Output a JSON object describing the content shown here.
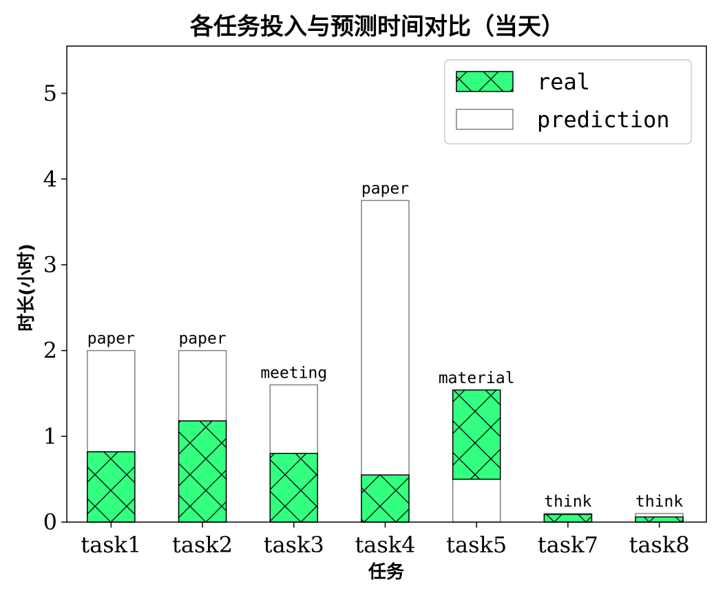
{
  "chart_data": {
    "type": "bar",
    "stacked": true,
    "title": "各任务投入与预测时间对比（当天）",
    "xlabel": "任务",
    "ylabel": "时长(小时)",
    "categories": [
      "task1",
      "task2",
      "task3",
      "task4",
      "task5",
      "task7",
      "task8"
    ],
    "series": [
      {
        "name": "prediction",
        "values": [
          2.0,
          2.0,
          1.6,
          3.75,
          0.5,
          0.1,
          0.1
        ],
        "color": "#ffffff",
        "edge": "#808080"
      },
      {
        "name": "real",
        "values": [
          0.82,
          1.18,
          0.8,
          0.55,
          1.04,
          0.09,
          0.06
        ],
        "color": "#33ff80",
        "edge": "#000000",
        "hatch": "x"
      }
    ],
    "stack_rule": "real bar starts at 0 when real < prediction, otherwise it is stacked above prediction",
    "bar_labels": [
      "paper",
      "paper",
      "meeting",
      "paper",
      "material",
      "think",
      "think"
    ],
    "yticks": [
      0,
      1,
      2,
      3,
      4,
      5
    ],
    "ylim": [
      0,
      5.55
    ],
    "legend": {
      "position": "top-right",
      "entries": [
        "real",
        "prediction"
      ]
    },
    "grid": false
  }
}
